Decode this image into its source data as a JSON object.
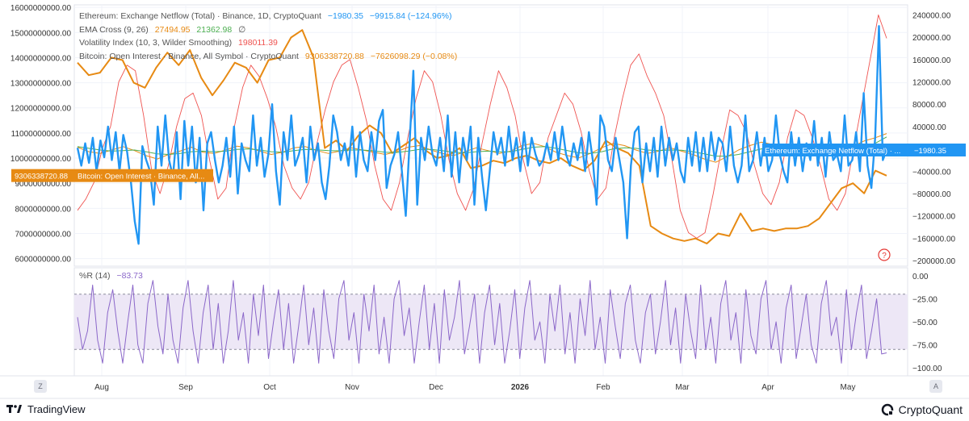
{
  "colors": {
    "netflow": "#2196f3",
    "oi": "#e78a13",
    "ema_fast": "#e78a13",
    "ema_slow": "#4caf50",
    "volatility": "#ef5350",
    "williams": "#8b67c9",
    "band": "#ede7f6"
  },
  "legend": {
    "netflow": {
      "label": "Ethereum: Exchange Netflow (Total) · Binance, 1D, CryptoQuant",
      "v1": "−1980.35",
      "v2": "−9915.84 (−124.96%)"
    },
    "ema": {
      "label": "EMA Cross (9, 26)",
      "v1": "27494.95",
      "v2": "21362.98",
      "v3": "∅"
    },
    "vol": {
      "label": "Volatility Index (10, 3, Wilder Smoothing)",
      "v1": "198011.39"
    },
    "oi": {
      "label": "Bitcoin: Open Interest · Binance, All Symbol · CryptoQuant",
      "v1": "9306338720.88",
      "v2": "−7626098.29 (−0.08%)"
    }
  },
  "oscillator": {
    "label": "%R (14)",
    "value": "−83.73"
  },
  "price_tags": {
    "oi_value": "9306338720.88",
    "oi_label": "Bitcoin: Open Interest · Binance, All...",
    "netflow_label": "Ethereum: Exchange Netflow (Total) · ...",
    "netflow_value": "−1980.35"
  },
  "footer": {
    "left_brand": "TradingView",
    "right_brand": "CryptoQuant",
    "z_btn": "Z",
    "a_btn": "A",
    "help": "?"
  },
  "chart_data": [
    {
      "type": "line",
      "left_axis": {
        "ticks": [
          "16000000000.00",
          "15000000000.00",
          "14000000000.00",
          "13000000000.00",
          "12000000000.00",
          "11000000000.00",
          "10000000000.00",
          "9000000000.00",
          "8000000000.00",
          "7000000000.00",
          "6000000000.00"
        ],
        "range": [
          5700000000,
          16100000000
        ]
      },
      "right_axis": {
        "ticks": [
          "240000.00",
          "200000.00",
          "160000.00",
          "120000.00",
          "80000.00",
          "40000.00",
          "−40000.00",
          "−80000.00",
          "−120000.00",
          "−160000.00",
          "−200000.00"
        ],
        "range": [
          -210000,
          258000
        ]
      },
      "x_ticks": [
        "Aug",
        "Sep",
        "Oct",
        "Nov",
        "Dec",
        "2026",
        "Feb",
        "Mar",
        "Apr",
        "May"
      ],
      "series": [
        {
          "name": "Bitcoin: Open Interest · Binance, All Symbol · CryptoQuant",
          "axis": "left",
          "values": [
            13800000000,
            13300000000,
            13400000000,
            14000000000,
            13900000000,
            13000000000,
            12800000000,
            13600000000,
            14200000000,
            13700000000,
            14300000000,
            13200000000,
            12500000000,
            13100000000,
            13800000000,
            13600000000,
            13000000000,
            13900000000,
            14000000000,
            14800000000,
            15100000000,
            14000000000,
            10400000000,
            10700000000,
            10300000000,
            10900000000,
            11300000000,
            11000000000,
            10200000000,
            10500000000,
            10800000000,
            10300000000,
            10000000000,
            10100000000,
            10400000000,
            9600000000,
            9700000000,
            9900000000,
            9800000000,
            10000000000,
            10100000000,
            9900000000,
            9800000000,
            10000000000,
            9700000000,
            9500000000,
            9900000000,
            10700000000,
            10400000000,
            10200000000,
            9700000000,
            7300000000,
            7000000000,
            6800000000,
            6700000000,
            6800000000,
            6600000000,
            7000000000,
            6900000000,
            7800000000,
            7100000000,
            7200000000,
            7100000000,
            7200000000,
            7200000000,
            7300000000,
            7600000000,
            8200000000,
            8800000000,
            9000000000,
            8600000000,
            9500000000,
            9300000000
          ]
        },
        {
          "name": "Ethereum: Exchange Netflow (Total) · Binance, 1D, CryptoQuant",
          "axis": "right",
          "values": [
            2000,
            -30000,
            10000,
            -25000,
            20000,
            -40000,
            15000,
            -15000,
            40000,
            -20000,
            30000,
            -40000,
            25000,
            -5000,
            -60000,
            -130000,
            -170000,
            5000,
            -20000,
            -40000,
            -100000,
            40000,
            -30000,
            60000,
            -20000,
            -50000,
            30000,
            -90000,
            50000,
            -30000,
            40000,
            -60000,
            20000,
            -110000,
            10000,
            30000,
            -20000,
            -60000,
            -30000,
            20000,
            -50000,
            40000,
            -80000,
            10000,
            -20000,
            -40000,
            60000,
            -30000,
            20000,
            -50000,
            -10000,
            80000,
            -40000,
            -100000,
            30000,
            -20000,
            60000,
            -30000,
            -10000,
            20000,
            -60000,
            40000,
            -20000,
            10000,
            -60000,
            -90000,
            -30000,
            60000,
            30000,
            -20000,
            10000,
            -30000,
            40000,
            -50000,
            30000,
            -20000,
            -40000,
            30000,
            -20000,
            50000,
            70000,
            -70000,
            -30000,
            -10000,
            30000,
            -40000,
            -120000,
            10000,
            140000,
            -100000,
            20000,
            -20000,
            40000,
            -10000,
            -30000,
            20000,
            -40000,
            60000,
            -50000,
            30000,
            -60000,
            20000,
            -20000,
            40000,
            -100000,
            20000,
            -50000,
            -110000,
            -40000,
            30000,
            -10000,
            20000,
            -30000,
            40000,
            -20000,
            20000,
            -40000,
            30000,
            -30000,
            20000,
            -10000,
            -30000,
            -20000,
            10000,
            -20000,
            30000,
            -20000,
            40000,
            -10000,
            -30000,
            10000,
            -20000,
            20000,
            -40000,
            30000,
            -20000,
            -100000,
            60000,
            40000,
            -20000,
            -40000,
            20000,
            -20000,
            -60000,
            -160000,
            -30000,
            30000,
            40000,
            -60000,
            10000,
            -40000,
            20000,
            -50000,
            40000,
            -30000,
            20000,
            -20000,
            10000,
            -40000,
            -60000,
            20000,
            -30000,
            30000,
            -40000,
            20000,
            -40000,
            30000,
            -20000,
            20000,
            10000,
            -40000,
            40000,
            -30000,
            -60000,
            -30000,
            60000,
            -40000,
            -20000,
            30000,
            -30000,
            20000,
            -40000,
            -20000,
            60000,
            -10000,
            -40000,
            -60000,
            30000,
            -30000,
            20000,
            -40000,
            10000,
            -20000,
            50000,
            -30000,
            20000,
            -50000,
            30000,
            -20000,
            -10000,
            -40000,
            60000,
            -30000,
            -20000,
            30000,
            -40000,
            100000,
            -30000,
            -70000,
            20000,
            220000,
            -20000,
            -1980.35
          ]
        },
        {
          "name": "EMA (9)",
          "axis": "right",
          "values": [
            3000,
            -5000,
            -8000,
            -2000,
            4000,
            -3000,
            -12000,
            -18000,
            -10000,
            -4000,
            3000,
            -6000,
            -8000,
            -2000,
            5000,
            2000,
            -4000,
            -10000,
            -6000,
            2000,
            4000,
            -3000,
            -8000,
            -4000,
            2000,
            -2000,
            -6000,
            -10000,
            -5000,
            3000,
            6000,
            -2000,
            -8000,
            -12000,
            -5000,
            2000,
            -3000,
            -8000,
            -4000,
            6000,
            10000,
            4000,
            -6000,
            -12000,
            -16000,
            -8000,
            2000,
            10000,
            6000,
            -2000,
            -8000,
            -4000,
            2000,
            -4000,
            -10000,
            -18000,
            -24000,
            -14000,
            -2000,
            6000,
            12000,
            8000,
            -2000,
            -8000,
            -4000,
            2000,
            -2000,
            -6000,
            4000,
            14000,
            20000,
            27494.95
          ]
        },
        {
          "name": "EMA (26)",
          "axis": "right",
          "values": [
            4000,
            1000,
            -2000,
            -4000,
            -3000,
            -2000,
            -5000,
            -9000,
            -10000,
            -8000,
            -5000,
            -4000,
            -5000,
            -4000,
            -1000,
            0,
            -2000,
            -5000,
            -6000,
            -3000,
            -1000,
            -1500,
            -3000,
            -3500,
            -2000,
            -2000,
            -3500,
            -6000,
            -6500,
            -4000,
            -1000,
            -1000,
            -3000,
            -6000,
            -7000,
            -5000,
            -4000,
            -5000,
            -5000,
            -1000,
            3000,
            4000,
            1000,
            -3000,
            -7000,
            -8000,
            -5000,
            0,
            2000,
            1000,
            -2000,
            -3000,
            -2000,
            -2500,
            -5000,
            -9000,
            -13000,
            -13000,
            -10000,
            -5000,
            0,
            2000,
            1000,
            -2000,
            -3000,
            -2000,
            -2000,
            -3000,
            -1000,
            4000,
            10000,
            21362.98
          ]
        },
        {
          "name": "Volatility Index (10, 3, Wilder Smoothing)",
          "axis": "right",
          "values": [
            -110000,
            -90000,
            -60000,
            0,
            40000,
            120000,
            150000,
            140000,
            60000,
            -40000,
            -80000,
            -30000,
            40000,
            90000,
            100000,
            60000,
            -20000,
            -90000,
            -70000,
            40000,
            110000,
            150000,
            130000,
            90000,
            40000,
            -30000,
            -70000,
            -90000,
            -60000,
            10000,
            70000,
            120000,
            150000,
            160000,
            110000,
            50000,
            -30000,
            -90000,
            -110000,
            -60000,
            20000,
            90000,
            140000,
            120000,
            60000,
            -20000,
            -80000,
            -110000,
            -70000,
            10000,
            80000,
            140000,
            110000,
            60000,
            -20000,
            -80000,
            -60000,
            20000,
            60000,
            100000,
            80000,
            30000,
            -40000,
            -90000,
            -70000,
            20000,
            90000,
            150000,
            170000,
            130000,
            100000,
            60000,
            -20000,
            -110000,
            -150000,
            -160000,
            -150000,
            -80000,
            0,
            70000,
            60000,
            30000,
            -30000,
            -80000,
            -100000,
            -60000,
            20000,
            70000,
            60000,
            20000,
            -30000,
            -90000,
            -110000,
            -80000,
            0,
            80000,
            160000,
            240000,
            198011.39
          ]
        },
        {
          "name": "%R (14)",
          "range": [
            -100,
            0
          ],
          "ticks": [
            "0.00",
            "−25.00",
            "−50.00",
            "−75.00",
            "−100.00"
          ],
          "band": [
            -80,
            -20
          ],
          "values": [
            -45,
            -80,
            -60,
            -10,
            -70,
            -95,
            -40,
            -15,
            -60,
            -95,
            -50,
            -10,
            -75,
            -95,
            -30,
            -5,
            -55,
            -85,
            -20,
            -70,
            -95,
            -35,
            -5,
            -60,
            -95,
            -40,
            -10,
            -80,
            -30,
            -95,
            -60,
            -5,
            -70,
            -40,
            -95,
            -20,
            -65,
            -10,
            -90,
            -50,
            -15,
            -80,
            -30,
            -95,
            -55,
            -10,
            -75,
            -35,
            -95,
            -15,
            -60,
            -90,
            -25,
            -5,
            -70,
            -40,
            -95,
            -20,
            -60,
            -10,
            -85,
            -45,
            -95,
            -25,
            -5,
            -65,
            -35,
            -95,
            -50,
            -10,
            -80,
            -30,
            -95,
            -15,
            -70,
            -45,
            -5,
            -85,
            -55,
            -20,
            -95,
            -40,
            -10,
            -75,
            -30,
            -95,
            -60,
            -15,
            -90,
            -35,
            -5,
            -70,
            -50,
            -95,
            -20,
            -60,
            -10,
            -85,
            -40,
            -95,
            -25,
            -65,
            -5,
            -80,
            -45,
            -95,
            -15,
            -55,
            -90,
            -30,
            -10,
            -70,
            -95,
            -40,
            -20,
            -85,
            -50,
            -5,
            -75,
            -35,
            -95,
            -20,
            -60,
            -90,
            -10,
            -80,
            -45,
            -95,
            -30,
            -5,
            -70,
            -40,
            -95,
            -15,
            -65,
            -85,
            -25,
            -5,
            -80,
            -50,
            -95,
            -35,
            -10,
            -90,
            -55,
            -20,
            -75,
            -95,
            -30,
            -5,
            -65,
            -45,
            -95,
            -15,
            -80,
            -40,
            -10,
            -90,
            -60,
            -25,
            -85,
            -83.73
          ]
        }
      ]
    }
  ]
}
